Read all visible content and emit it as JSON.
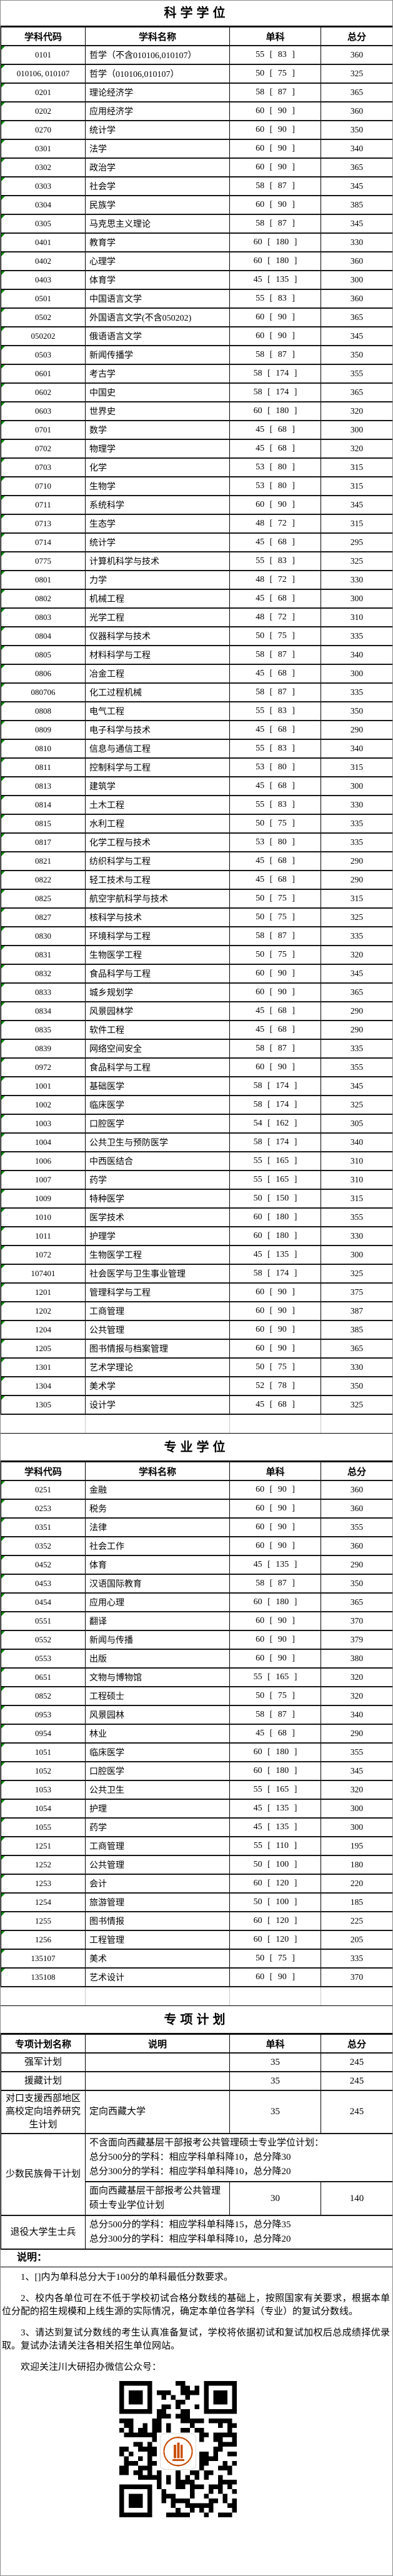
{
  "degree_headers": [
    "学科代码",
    "学科名称",
    "单科",
    "总分"
  ],
  "science": {
    "title": "科学学位",
    "rows": [
      [
        "0101",
        "哲学（不含010106,010107）",
        "55 [ 83 ]",
        "360"
      ],
      [
        "010106, 010107",
        "哲学（010106,010107）",
        "50 [ 75 ]",
        "325"
      ],
      [
        "0201",
        "理论经济学",
        "58 [ 87 ]",
        "365"
      ],
      [
        "0202",
        "应用经济学",
        "60 [ 90 ]",
        "360"
      ],
      [
        "0270",
        "统计学",
        "60 [ 90 ]",
        "350"
      ],
      [
        "0301",
        "法学",
        "60 [ 90 ]",
        "340"
      ],
      [
        "0302",
        "政治学",
        "60 [ 90 ]",
        "365"
      ],
      [
        "0303",
        "社会学",
        "58 [ 87 ]",
        "345"
      ],
      [
        "0304",
        "民族学",
        "60 [ 90 ]",
        "385"
      ],
      [
        "0305",
        "马克思主义理论",
        "58 [ 87 ]",
        "345"
      ],
      [
        "0401",
        "教育学",
        "60 [ 180 ]",
        "330"
      ],
      [
        "0402",
        "心理学",
        "60 [ 180 ]",
        "360"
      ],
      [
        "0403",
        "体育学",
        "45 [ 135 ]",
        "300"
      ],
      [
        "0501",
        "中国语言文学",
        "55 [ 83 ]",
        "360"
      ],
      [
        "0502",
        "外国语言文学(不含050202)",
        "60 [ 90 ]",
        "365"
      ],
      [
        "050202",
        "俄语语言文学",
        "60 [ 90 ]",
        "345"
      ],
      [
        "0503",
        "新闻传播学",
        "58 [ 87 ]",
        "350"
      ],
      [
        "0601",
        "考古学",
        "58 [ 174 ]",
        "355"
      ],
      [
        "0602",
        "中国史",
        "58 [ 174 ]",
        "365"
      ],
      [
        "0603",
        "世界史",
        "60 [ 180 ]",
        "320"
      ],
      [
        "0701",
        "数学",
        "45 [ 68 ]",
        "300"
      ],
      [
        "0702",
        "物理学",
        "45 [ 68 ]",
        "320"
      ],
      [
        "0703",
        "化学",
        "53 [ 80 ]",
        "315"
      ],
      [
        "0710",
        "生物学",
        "53 [ 80 ]",
        "315"
      ],
      [
        "0711",
        "系统科学",
        "60 [ 90 ]",
        "345"
      ],
      [
        "0713",
        "生态学",
        "48 [ 72 ]",
        "315"
      ],
      [
        "0714",
        "统计学",
        "45 [ 68 ]",
        "295"
      ],
      [
        "0775",
        "计算机科学与技术",
        "55 [ 83 ]",
        "325"
      ],
      [
        "0801",
        "力学",
        "48 [ 72 ]",
        "330"
      ],
      [
        "0802",
        "机械工程",
        "45 [ 68 ]",
        "300"
      ],
      [
        "0803",
        "光学工程",
        "48 [ 72 ]",
        "310"
      ],
      [
        "0804",
        "仪器科学与技术",
        "50 [ 75 ]",
        "335"
      ],
      [
        "0805",
        "材料科学与工程",
        "58 [ 87 ]",
        "340"
      ],
      [
        "0806",
        "冶金工程",
        "45 [ 68 ]",
        "300"
      ],
      [
        "080706",
        "化工过程机械",
        "58 [ 87 ]",
        "335"
      ],
      [
        "0808",
        "电气工程",
        "55 [ 83 ]",
        "350"
      ],
      [
        "0809",
        "电子科学与技术",
        "45 [ 68 ]",
        "290"
      ],
      [
        "0810",
        "信息与通信工程",
        "55 [ 83 ]",
        "340"
      ],
      [
        "0811",
        "控制科学与工程",
        "53 [ 80 ]",
        "315"
      ],
      [
        "0813",
        "建筑学",
        "45 [ 68 ]",
        "300"
      ],
      [
        "0814",
        "土木工程",
        "55 [ 83 ]",
        "330"
      ],
      [
        "0815",
        "水利工程",
        "50 [ 75 ]",
        "335"
      ],
      [
        "0817",
        "化学工程与技术",
        "53 [ 80 ]",
        "335"
      ],
      [
        "0821",
        "纺织科学与工程",
        "45 [ 68 ]",
        "290"
      ],
      [
        "0822",
        "轻工技术与工程",
        "45 [ 68 ]",
        "290"
      ],
      [
        "0825",
        "航空宇航科学与技术",
        "50 [ 75 ]",
        "315"
      ],
      [
        "0827",
        "核科学与技术",
        "50 [ 75 ]",
        "325"
      ],
      [
        "0830",
        "环境科学与工程",
        "58 [ 87 ]",
        "335"
      ],
      [
        "0831",
        "生物医学工程",
        "50 [ 75 ]",
        "320"
      ],
      [
        "0832",
        "食品科学与工程",
        "60 [ 90 ]",
        "345"
      ],
      [
        "0833",
        "城乡规划学",
        "60 [ 90 ]",
        "365"
      ],
      [
        "0834",
        "风景园林学",
        "45 [ 68 ]",
        "290"
      ],
      [
        "0835",
        "软件工程",
        "45 [ 68 ]",
        "290"
      ],
      [
        "0839",
        "网络空间安全",
        "58 [ 87 ]",
        "335"
      ],
      [
        "0972",
        "食品科学与工程",
        "60 [ 90 ]",
        "355"
      ],
      [
        "1001",
        "基础医学",
        "58 [ 174 ]",
        "345"
      ],
      [
        "1002",
        "临床医学",
        "58 [ 174 ]",
        "325"
      ],
      [
        "1003",
        "口腔医学",
        "54 [ 162 ]",
        "305"
      ],
      [
        "1004",
        "公共卫生与预防医学",
        "58 [ 174 ]",
        "340"
      ],
      [
        "1006",
        "中西医结合",
        "55 [ 165 ]",
        "310"
      ],
      [
        "1007",
        "药学",
        "55 [ 165 ]",
        "310"
      ],
      [
        "1009",
        "特种医学",
        "50 [ 150 ]",
        "315"
      ],
      [
        "1010",
        "医学技术",
        "60 [ 180 ]",
        "355"
      ],
      [
        "1011",
        "护理学",
        "60 [ 180 ]",
        "330"
      ],
      [
        "1072",
        "生物医学工程",
        "45 [ 135 ]",
        "300"
      ],
      [
        "107401",
        "社会医学与卫生事业管理",
        "58 [ 174 ]",
        "325"
      ],
      [
        "1201",
        "管理科学与工程",
        "60 [ 90 ]",
        "375"
      ],
      [
        "1202",
        "工商管理",
        "60 [ 90 ]",
        "387"
      ],
      [
        "1204",
        "公共管理",
        "60 [ 90 ]",
        "385"
      ],
      [
        "1205",
        "图书情报与档案管理",
        "60 [ 90 ]",
        "365"
      ],
      [
        "1301",
        "艺术学理论",
        "50 [ 75 ]",
        "330"
      ],
      [
        "1304",
        "美术学",
        "52 [ 78 ]",
        "350"
      ],
      [
        "1305",
        "设计学",
        "45 [ 68 ]",
        "325"
      ]
    ]
  },
  "professional": {
    "title": "专业学位",
    "rows": [
      [
        "0251",
        "金融",
        "60 [ 90 ]",
        "360"
      ],
      [
        "0253",
        "税务",
        "60 [ 90 ]",
        "360"
      ],
      [
        "0351",
        "法律",
        "60 [ 90 ]",
        "355"
      ],
      [
        "0352",
        "社会工作",
        "60 [ 90 ]",
        "360"
      ],
      [
        "0452",
        "体育",
        "45 [ 135 ]",
        "290"
      ],
      [
        "0453",
        "汉语国际教育",
        "58 [ 87 ]",
        "350"
      ],
      [
        "0454",
        "应用心理",
        "60 [ 180 ]",
        "365"
      ],
      [
        "0551",
        "翻译",
        "60 [ 90 ]",
        "370"
      ],
      [
        "0552",
        "新闻与传播",
        "60 [ 90 ]",
        "379"
      ],
      [
        "0553",
        "出版",
        "60 [ 90 ]",
        "380"
      ],
      [
        "0651",
        "文物与博物馆",
        "55 [ 165 ]",
        "320"
      ],
      [
        "0852",
        "工程硕士",
        "50 [ 75 ]",
        "320"
      ],
      [
        "0953",
        "风景园林",
        "58 [ 87 ]",
        "340"
      ],
      [
        "0954",
        "林业",
        "45 [ 68 ]",
        "290"
      ],
      [
        "1051",
        "临床医学",
        "60 [ 180 ]",
        "355"
      ],
      [
        "1052",
        "口腔医学",
        "60 [ 180 ]",
        "345"
      ],
      [
        "1053",
        "公共卫生",
        "55 [ 165 ]",
        "320"
      ],
      [
        "1054",
        "护理",
        "45 [ 135 ]",
        "300"
      ],
      [
        "1055",
        "药学",
        "45 [ 135 ]",
        "300"
      ],
      [
        "1251",
        "工商管理",
        "55 [ 110 ]",
        "195"
      ],
      [
        "1252",
        "公共管理",
        "50 [ 100 ]",
        "180"
      ],
      [
        "1253",
        "会计",
        "60 [ 120 ]",
        "220"
      ],
      [
        "1254",
        "旅游管理",
        "50 [ 100 ]",
        "185"
      ],
      [
        "1255",
        "图书情报",
        "60 [ 120 ]",
        "225"
      ],
      [
        "1256",
        "工程管理",
        "60 [ 120 ]",
        "205"
      ],
      [
        "135107",
        "美术",
        "50 [ 75 ]",
        "335"
      ],
      [
        "135108",
        "艺术设计",
        "60 [ 90 ]",
        "370"
      ]
    ]
  },
  "special": {
    "title": "专项计划",
    "headers": [
      "专项计划名称",
      "说明",
      "单科",
      "总分"
    ],
    "simple": [
      {
        "name": "强军计划",
        "desc": "",
        "single": "35",
        "total": "245"
      },
      {
        "name": "援藏计划",
        "desc": "",
        "single": "35",
        "total": "245"
      },
      {
        "name": "对口支援西部地区高校定向培养研究生计划",
        "desc": "定向西藏大学",
        "single": "35",
        "total": "245"
      }
    ],
    "minority": {
      "name": "少数民族骨干计划",
      "desc_lines": [
        "不含面向西藏基层干部报考公共管理硕士专业学位计划：",
        "总分500分的学科：相应学科单科降10，总分降30",
        "总分300分的学科：相应学科单科降10，总分降20"
      ],
      "sub_desc": "面向西藏基层干部报考公共管理硕士专业学位计划",
      "sub_single": "30",
      "sub_total": "140"
    },
    "veteran": {
      "name": "退役大学生士兵",
      "desc_lines": [
        "总分500分的学科：相应学科单科降15，总分降35",
        "总分300分的学科：相应学科单科降10，总分降20"
      ]
    }
  },
  "notes": {
    "label": "说明：",
    "items": [
      "1、[]内为单科总分大于100分的单科最低分数要求。",
      "2、校内各单位可在不低于学校初试合格分数线的基础上，按照国家有关要求，根据本单位分配的招生规模和上线生源的实际情况，确定本单位各学科（专业）的复试分数线。",
      "3、请达到复试分数线的考生认真准备复试，学校将依据初试和复试加权后总成绩择优录取。复试办法请关注各相关招生单位网站。"
    ],
    "wechat_line": "欢迎关注川大研招办微信公众号："
  },
  "colors": {
    "corner_mark": "#0c8a0c",
    "table_border": "#000000",
    "qr_logo": "#c9500e"
  }
}
